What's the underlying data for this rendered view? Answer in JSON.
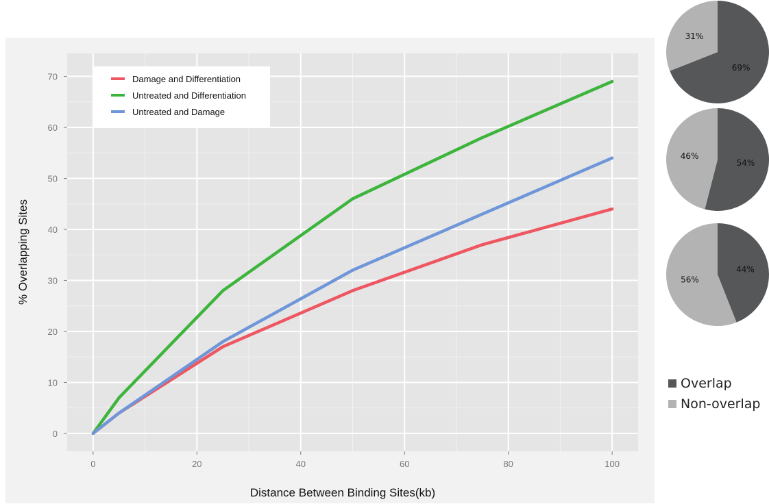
{
  "chart_data": [
    {
      "type": "line",
      "title": "",
      "xlabel": "Distance Between Binding Sites(kb)",
      "ylabel": "% Overlapping Sites",
      "xlim": [
        -5,
        105
      ],
      "ylim": [
        -3.5,
        74.5
      ],
      "xticks": [
        0,
        20,
        40,
        60,
        80,
        100
      ],
      "yticks": [
        0,
        10,
        20,
        30,
        40,
        50,
        60,
        70
      ],
      "grid": true,
      "legend_position": "top-left",
      "series": [
        {
          "name": "Damage and Differentiation",
          "color": "#ee5661",
          "x": [
            0,
            5,
            25,
            50,
            75,
            100
          ],
          "y": [
            0,
            4,
            17,
            28,
            37,
            44
          ]
        },
        {
          "name": "Untreated and Differentiation",
          "color": "#3db53d",
          "x": [
            0,
            5,
            25,
            50,
            75,
            100
          ],
          "y": [
            0,
            7,
            28,
            46,
            58,
            69
          ]
        },
        {
          "name": "Untreated and Damage",
          "color": "#6f96d8",
          "x": [
            0,
            5,
            25,
            50,
            75,
            100
          ],
          "y": [
            0,
            4,
            18,
            32,
            43,
            54
          ]
        }
      ]
    },
    {
      "type": "pie",
      "title": "",
      "labels": [
        "Overlap",
        "Non-overlap"
      ],
      "values": [
        69,
        31
      ],
      "value_labels": [
        "69%",
        "31%"
      ],
      "colors": [
        "#555759",
        "#b3b3b3"
      ]
    },
    {
      "type": "pie",
      "title": "",
      "labels": [
        "Overlap",
        "Non-overlap"
      ],
      "values": [
        54,
        46
      ],
      "value_labels": [
        "54%",
        "46%"
      ],
      "colors": [
        "#555759",
        "#b3b3b3"
      ]
    },
    {
      "type": "pie",
      "title": "",
      "labels": [
        "Overlap",
        "Non-overlap"
      ],
      "values": [
        44,
        56
      ],
      "value_labels": [
        "44%",
        "56%"
      ],
      "colors": [
        "#555759",
        "#b3b3b3"
      ]
    }
  ],
  "pie_legend": {
    "items": [
      {
        "label": "Overlap",
        "color": "#555759"
      },
      {
        "label": "Non-overlap",
        "color": "#b3b3b3"
      }
    ]
  }
}
